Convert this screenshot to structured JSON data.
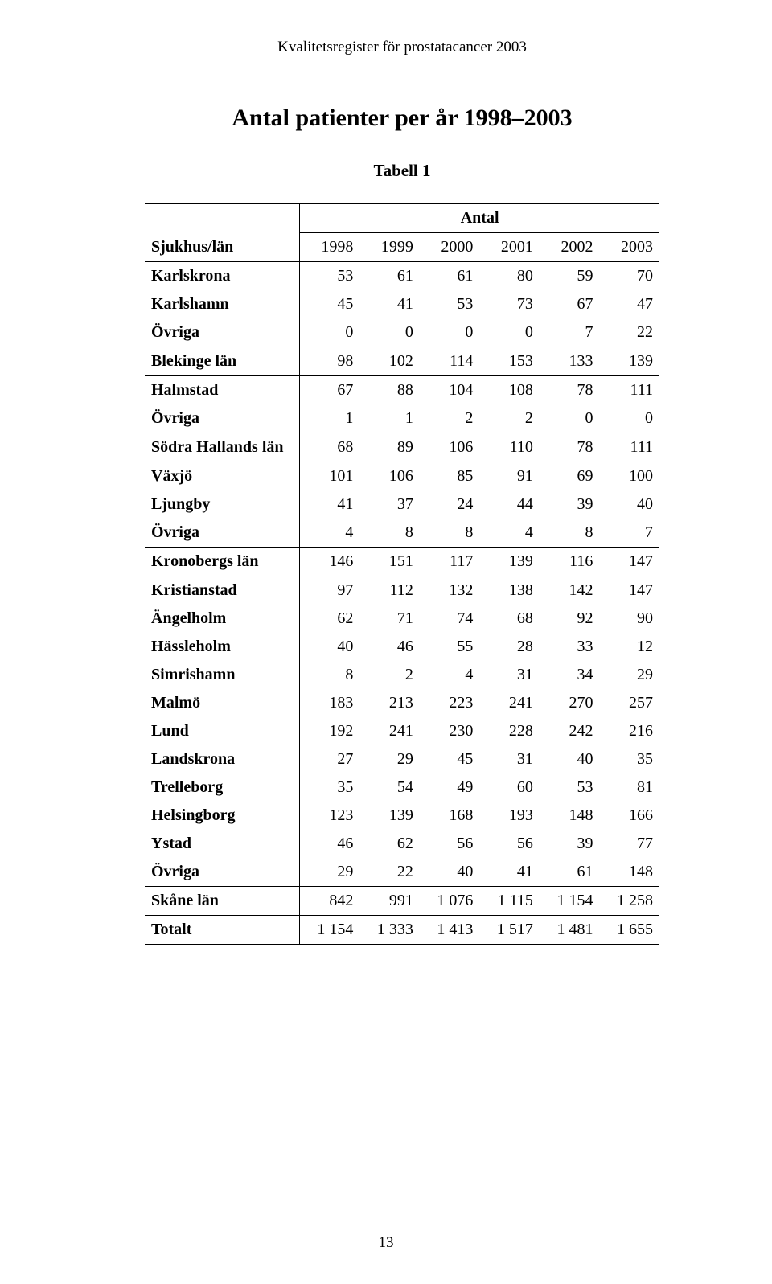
{
  "header": "Kvalitetsregister för prostatacancer 2003",
  "title": "Antal patienter per år 1998–2003",
  "subtitle": "Tabell 1",
  "page_number": "13",
  "colors": {
    "background": "#ffffff",
    "text": "#000000",
    "rule": "#000000"
  },
  "typography": {
    "family": "Times New Roman",
    "header_fontsize_pt": 14,
    "title_fontsize_pt": 22,
    "subtitle_fontsize_pt": 16,
    "table_fontsize_pt": 15
  },
  "table": {
    "type": "table",
    "corner_label": "Sjukhus/län",
    "group_header": "Antal",
    "columns": [
      "1998",
      "1999",
      "2000",
      "2001",
      "2002",
      "2003"
    ],
    "sections": [
      {
        "rows": [
          {
            "label": "Karlskrona",
            "values": [
              "53",
              "61",
              "61",
              "80",
              "59",
              "70"
            ]
          },
          {
            "label": "Karlshamn",
            "values": [
              "45",
              "41",
              "53",
              "73",
              "67",
              "47"
            ]
          },
          {
            "label": "Övriga",
            "values": [
              "0",
              "0",
              "0",
              "0",
              "7",
              "22"
            ]
          }
        ],
        "subtotal": {
          "label": "Blekinge län",
          "values": [
            "98",
            "102",
            "114",
            "153",
            "133",
            "139"
          ]
        }
      },
      {
        "rows": [
          {
            "label": "Halmstad",
            "values": [
              "67",
              "88",
              "104",
              "108",
              "78",
              "111"
            ]
          },
          {
            "label": "Övriga",
            "values": [
              "1",
              "1",
              "2",
              "2",
              "0",
              "0"
            ]
          }
        ],
        "subtotal": {
          "label": "Södra Hallands län",
          "multiline": true,
          "values": [
            "68",
            "89",
            "106",
            "110",
            "78",
            "111"
          ]
        }
      },
      {
        "rows": [
          {
            "label": "Växjö",
            "values": [
              "101",
              "106",
              "85",
              "91",
              "69",
              "100"
            ]
          },
          {
            "label": "Ljungby",
            "values": [
              "41",
              "37",
              "24",
              "44",
              "39",
              "40"
            ]
          },
          {
            "label": "Övriga",
            "values": [
              "4",
              "8",
              "8",
              "4",
              "8",
              "7"
            ]
          }
        ],
        "subtotal": {
          "label": "Kronobergs län",
          "values": [
            "146",
            "151",
            "117",
            "139",
            "116",
            "147"
          ]
        }
      },
      {
        "rows": [
          {
            "label": "Kristianstad",
            "values": [
              "97",
              "112",
              "132",
              "138",
              "142",
              "147"
            ]
          },
          {
            "label": "Ängelholm",
            "values": [
              "62",
              "71",
              "74",
              "68",
              "92",
              "90"
            ]
          },
          {
            "label": "Hässleholm",
            "values": [
              "40",
              "46",
              "55",
              "28",
              "33",
              "12"
            ]
          },
          {
            "label": "Simrishamn",
            "values": [
              "8",
              "2",
              "4",
              "31",
              "34",
              "29"
            ]
          },
          {
            "label": "Malmö",
            "values": [
              "183",
              "213",
              "223",
              "241",
              "270",
              "257"
            ]
          },
          {
            "label": "Lund",
            "values": [
              "192",
              "241",
              "230",
              "228",
              "242",
              "216"
            ]
          },
          {
            "label": "Landskrona",
            "values": [
              "27",
              "29",
              "45",
              "31",
              "40",
              "35"
            ]
          },
          {
            "label": "Trelleborg",
            "values": [
              "35",
              "54",
              "49",
              "60",
              "53",
              "81"
            ]
          },
          {
            "label": "Helsingborg",
            "values": [
              "123",
              "139",
              "168",
              "193",
              "148",
              "166"
            ]
          },
          {
            "label": "Ystad",
            "values": [
              "46",
              "62",
              "56",
              "56",
              "39",
              "77"
            ]
          },
          {
            "label": "Övriga",
            "values": [
              "29",
              "22",
              "40",
              "41",
              "61",
              "148"
            ]
          }
        ],
        "subtotal": {
          "label": "Skåne län",
          "values": [
            "842",
            "991",
            "1 076",
            "1 115",
            "1 154",
            "1 258"
          ]
        }
      }
    ],
    "grand_total": {
      "label": "Totalt",
      "values": [
        "1 154",
        "1 333",
        "1 413",
        "1 517",
        "1 481",
        "1 655"
      ]
    }
  }
}
